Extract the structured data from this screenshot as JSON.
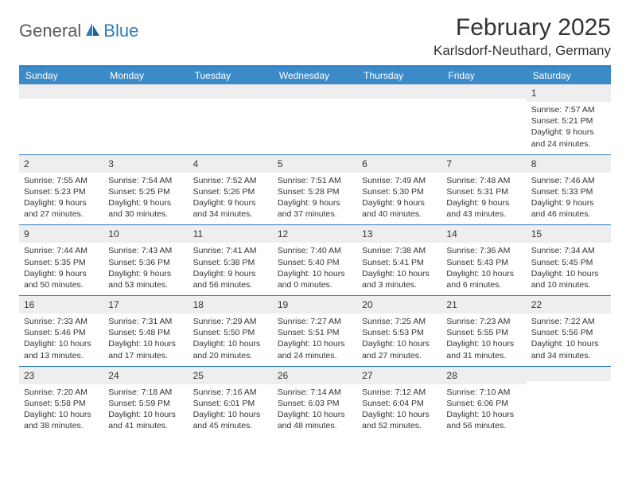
{
  "brand": {
    "name1": "General",
    "name2": "Blue"
  },
  "title": "February 2025",
  "location": "Karlsdorf-Neuthard, Germany",
  "colors": {
    "header_bg": "#3b8bc9",
    "border": "#2f7bbf",
    "daynum_bg": "#eeeeee",
    "text": "#333333",
    "logo_gray": "#5a5a5a",
    "logo_blue": "#2f7bbf"
  },
  "dayNames": [
    "Sunday",
    "Monday",
    "Tuesday",
    "Wednesday",
    "Thursday",
    "Friday",
    "Saturday"
  ],
  "weeks": [
    [
      {
        "n": "",
        "sunrise": "",
        "sunset": "",
        "daylight": ""
      },
      {
        "n": "",
        "sunrise": "",
        "sunset": "",
        "daylight": ""
      },
      {
        "n": "",
        "sunrise": "",
        "sunset": "",
        "daylight": ""
      },
      {
        "n": "",
        "sunrise": "",
        "sunset": "",
        "daylight": ""
      },
      {
        "n": "",
        "sunrise": "",
        "sunset": "",
        "daylight": ""
      },
      {
        "n": "",
        "sunrise": "",
        "sunset": "",
        "daylight": ""
      },
      {
        "n": "1",
        "sunrise": "Sunrise: 7:57 AM",
        "sunset": "Sunset: 5:21 PM",
        "daylight": "Daylight: 9 hours and 24 minutes."
      }
    ],
    [
      {
        "n": "2",
        "sunrise": "Sunrise: 7:55 AM",
        "sunset": "Sunset: 5:23 PM",
        "daylight": "Daylight: 9 hours and 27 minutes."
      },
      {
        "n": "3",
        "sunrise": "Sunrise: 7:54 AM",
        "sunset": "Sunset: 5:25 PM",
        "daylight": "Daylight: 9 hours and 30 minutes."
      },
      {
        "n": "4",
        "sunrise": "Sunrise: 7:52 AM",
        "sunset": "Sunset: 5:26 PM",
        "daylight": "Daylight: 9 hours and 34 minutes."
      },
      {
        "n": "5",
        "sunrise": "Sunrise: 7:51 AM",
        "sunset": "Sunset: 5:28 PM",
        "daylight": "Daylight: 9 hours and 37 minutes."
      },
      {
        "n": "6",
        "sunrise": "Sunrise: 7:49 AM",
        "sunset": "Sunset: 5:30 PM",
        "daylight": "Daylight: 9 hours and 40 minutes."
      },
      {
        "n": "7",
        "sunrise": "Sunrise: 7:48 AM",
        "sunset": "Sunset: 5:31 PM",
        "daylight": "Daylight: 9 hours and 43 minutes."
      },
      {
        "n": "8",
        "sunrise": "Sunrise: 7:46 AM",
        "sunset": "Sunset: 5:33 PM",
        "daylight": "Daylight: 9 hours and 46 minutes."
      }
    ],
    [
      {
        "n": "9",
        "sunrise": "Sunrise: 7:44 AM",
        "sunset": "Sunset: 5:35 PM",
        "daylight": "Daylight: 9 hours and 50 minutes."
      },
      {
        "n": "10",
        "sunrise": "Sunrise: 7:43 AM",
        "sunset": "Sunset: 5:36 PM",
        "daylight": "Daylight: 9 hours and 53 minutes."
      },
      {
        "n": "11",
        "sunrise": "Sunrise: 7:41 AM",
        "sunset": "Sunset: 5:38 PM",
        "daylight": "Daylight: 9 hours and 56 minutes."
      },
      {
        "n": "12",
        "sunrise": "Sunrise: 7:40 AM",
        "sunset": "Sunset: 5:40 PM",
        "daylight": "Daylight: 10 hours and 0 minutes."
      },
      {
        "n": "13",
        "sunrise": "Sunrise: 7:38 AM",
        "sunset": "Sunset: 5:41 PM",
        "daylight": "Daylight: 10 hours and 3 minutes."
      },
      {
        "n": "14",
        "sunrise": "Sunrise: 7:36 AM",
        "sunset": "Sunset: 5:43 PM",
        "daylight": "Daylight: 10 hours and 6 minutes."
      },
      {
        "n": "15",
        "sunrise": "Sunrise: 7:34 AM",
        "sunset": "Sunset: 5:45 PM",
        "daylight": "Daylight: 10 hours and 10 minutes."
      }
    ],
    [
      {
        "n": "16",
        "sunrise": "Sunrise: 7:33 AM",
        "sunset": "Sunset: 5:46 PM",
        "daylight": "Daylight: 10 hours and 13 minutes."
      },
      {
        "n": "17",
        "sunrise": "Sunrise: 7:31 AM",
        "sunset": "Sunset: 5:48 PM",
        "daylight": "Daylight: 10 hours and 17 minutes."
      },
      {
        "n": "18",
        "sunrise": "Sunrise: 7:29 AM",
        "sunset": "Sunset: 5:50 PM",
        "daylight": "Daylight: 10 hours and 20 minutes."
      },
      {
        "n": "19",
        "sunrise": "Sunrise: 7:27 AM",
        "sunset": "Sunset: 5:51 PM",
        "daylight": "Daylight: 10 hours and 24 minutes."
      },
      {
        "n": "20",
        "sunrise": "Sunrise: 7:25 AM",
        "sunset": "Sunset: 5:53 PM",
        "daylight": "Daylight: 10 hours and 27 minutes."
      },
      {
        "n": "21",
        "sunrise": "Sunrise: 7:23 AM",
        "sunset": "Sunset: 5:55 PM",
        "daylight": "Daylight: 10 hours and 31 minutes."
      },
      {
        "n": "22",
        "sunrise": "Sunrise: 7:22 AM",
        "sunset": "Sunset: 5:56 PM",
        "daylight": "Daylight: 10 hours and 34 minutes."
      }
    ],
    [
      {
        "n": "23",
        "sunrise": "Sunrise: 7:20 AM",
        "sunset": "Sunset: 5:58 PM",
        "daylight": "Daylight: 10 hours and 38 minutes."
      },
      {
        "n": "24",
        "sunrise": "Sunrise: 7:18 AM",
        "sunset": "Sunset: 5:59 PM",
        "daylight": "Daylight: 10 hours and 41 minutes."
      },
      {
        "n": "25",
        "sunrise": "Sunrise: 7:16 AM",
        "sunset": "Sunset: 6:01 PM",
        "daylight": "Daylight: 10 hours and 45 minutes."
      },
      {
        "n": "26",
        "sunrise": "Sunrise: 7:14 AM",
        "sunset": "Sunset: 6:03 PM",
        "daylight": "Daylight: 10 hours and 48 minutes."
      },
      {
        "n": "27",
        "sunrise": "Sunrise: 7:12 AM",
        "sunset": "Sunset: 6:04 PM",
        "daylight": "Daylight: 10 hours and 52 minutes."
      },
      {
        "n": "28",
        "sunrise": "Sunrise: 7:10 AM",
        "sunset": "Sunset: 6:06 PM",
        "daylight": "Daylight: 10 hours and 56 minutes."
      },
      {
        "n": "",
        "sunrise": "",
        "sunset": "",
        "daylight": ""
      }
    ]
  ]
}
